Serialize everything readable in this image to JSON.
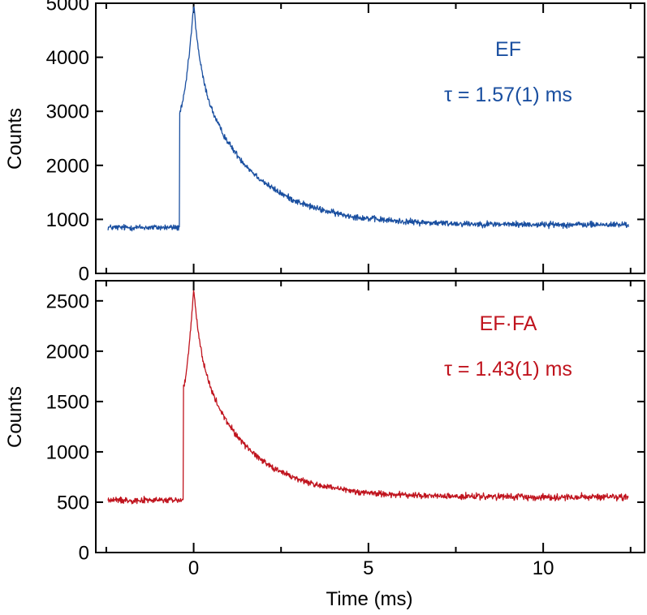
{
  "chart_data": [
    {
      "type": "line",
      "panel": "top",
      "series": [
        {
          "name": "EF",
          "color": "#1a4fa0",
          "baseline": 850,
          "onset_ms": -0.4,
          "peak_ms": 0.0,
          "jump_to": 3000,
          "peak": 4950,
          "fast_amplitude": 1250,
          "fast_tau_ms": 0.2,
          "slow_amplitude": 2850,
          "slow_tau_ms": 1.57,
          "offset": 900,
          "noise": 40
        }
      ],
      "xlim": [
        -2.8,
        12.9
      ],
      "ylim": [
        0,
        5000
      ],
      "xticks": [
        0,
        5,
        10
      ],
      "yticks": [
        0,
        1000,
        2000,
        3000,
        4000,
        5000
      ],
      "ytick_labels": [
        "0",
        "1000",
        "2000",
        "3000",
        "4000",
        "5000"
      ],
      "xlabel": "",
      "ylabel": "Counts",
      "annotations": [
        "EF",
        "τ = 1.57(1) ms"
      ]
    },
    {
      "type": "line",
      "panel": "bottom",
      "series": [
        {
          "name": "EF·FA",
          "color": "#c0141e",
          "baseline": 520,
          "onset_ms": -0.3,
          "peak_ms": 0.0,
          "jump_to": 1650,
          "peak": 2620,
          "fast_amplitude": 620,
          "fast_tau_ms": 0.2,
          "slow_amplitude": 1450,
          "slow_tau_ms": 1.43,
          "offset": 550,
          "noise": 22
        }
      ],
      "xlim": [
        -2.8,
        12.9
      ],
      "ylim": [
        0,
        2700
      ],
      "xticks": [
        0,
        5,
        10
      ],
      "xtick_labels": [
        "0",
        "5",
        "10"
      ],
      "yticks": [
        0,
        500,
        1000,
        1500,
        2000,
        2500
      ],
      "ytick_labels": [
        "0",
        "500",
        "1000",
        "1500",
        "2000",
        "2500"
      ],
      "xlabel": "Time (ms)",
      "ylabel": "Counts",
      "annotations": [
        "EF·FA",
        "τ = 1.43(1) ms"
      ]
    }
  ]
}
